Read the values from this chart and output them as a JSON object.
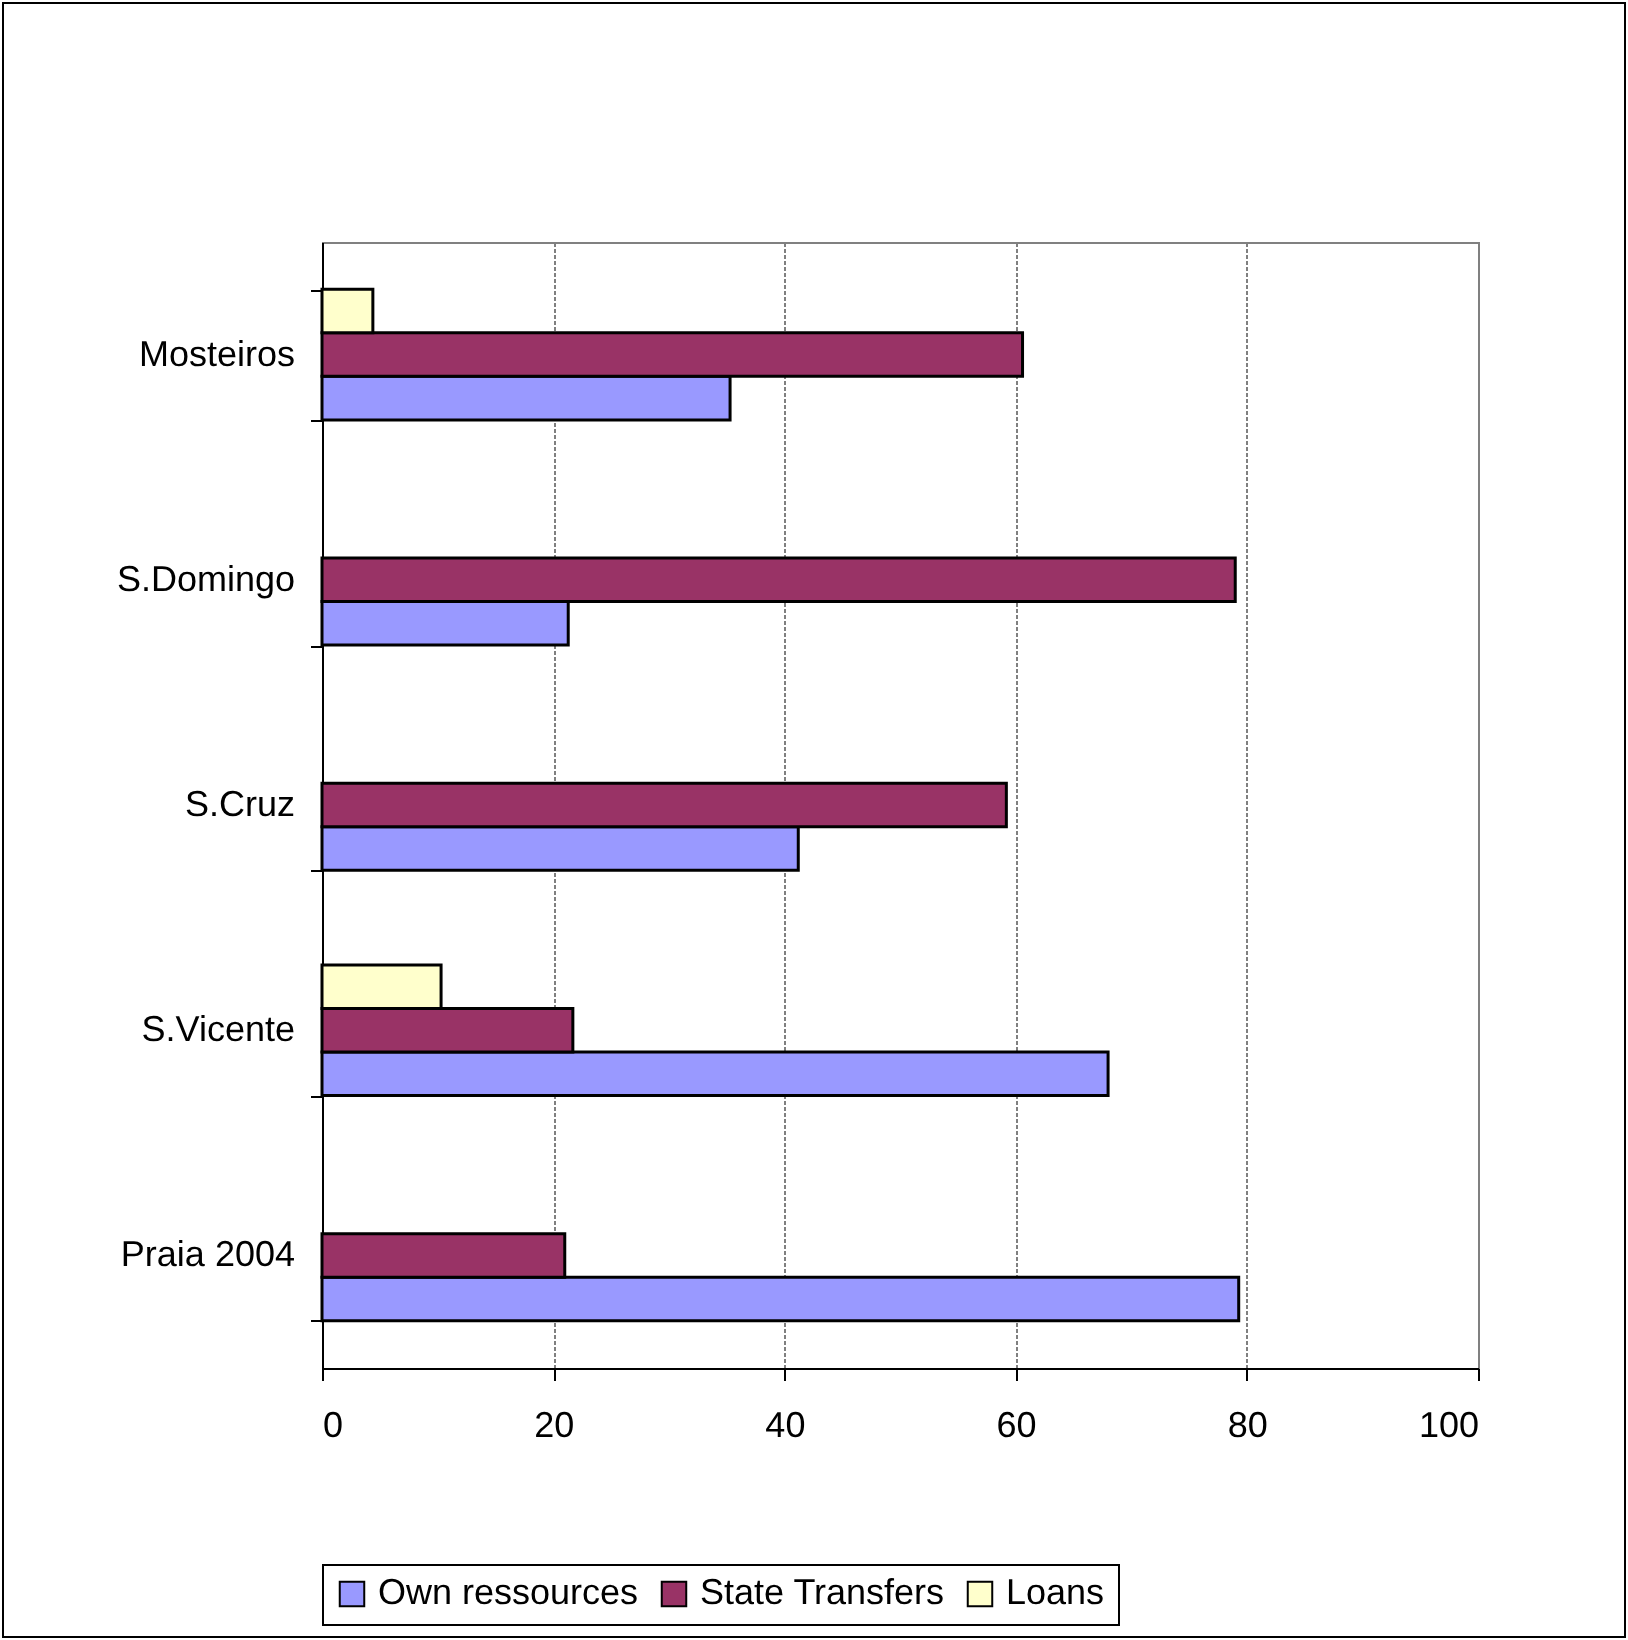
{
  "chart_data": {
    "type": "bar",
    "orientation": "horizontal",
    "categories": [
      "Mosteiros",
      "S.Domingo",
      "S.Cruz",
      "S.Vicente",
      "Praia 2004"
    ],
    "series": [
      {
        "name": "Own ressources",
        "color": "#9999ff",
        "values": [
          35.3,
          21.3,
          41.2,
          68.0,
          79.3
        ]
      },
      {
        "name": "State Transfers",
        "color": "#993366",
        "values": [
          60.6,
          79.0,
          59.2,
          21.7,
          21.0
        ]
      },
      {
        "name": "Loans",
        "color": "#ffffcc",
        "values": [
          4.4,
          null,
          null,
          10.3,
          null
        ]
      }
    ],
    "xlim": [
      0,
      100
    ],
    "xticks": [
      0,
      20,
      40,
      60,
      80,
      100
    ],
    "grid": "x",
    "legend": "bottom"
  }
}
